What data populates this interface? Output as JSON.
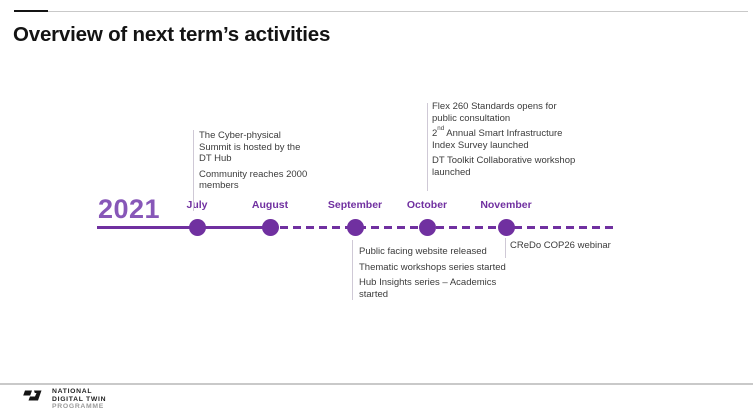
{
  "slide_title": "Overview of next term’s activities",
  "timeline": {
    "year": "2021",
    "months": [
      "July",
      "August",
      "September",
      "October",
      "November"
    ],
    "annotations": [
      {
        "id": "cyber-summit",
        "attach": "July",
        "side": "above",
        "paragraphs": [
          "The Cyber-physical Summit is hosted by the DT Hub",
          "Community reaches 2000 members"
        ]
      },
      {
        "id": "standards",
        "attach": "October",
        "side": "above",
        "paragraphs": [
          "Flex 260 Standards opens for public consultation",
          "2nd Annual Smart Infrastructure Index Survey launched",
          "DT Toolkit Collaborative workshop launched"
        ]
      },
      {
        "id": "website",
        "attach": "September",
        "side": "below",
        "paragraphs": [
          "Public facing website released",
          "Thematic workshops series started",
          "Hub Insights series – Academics started"
        ]
      },
      {
        "id": "credo",
        "attach": "November",
        "side": "below",
        "paragraphs": [
          "CReDo COP26 webinar"
        ]
      }
    ]
  },
  "footer": {
    "logo_lines": [
      "NATIONAL",
      "DIGITAL TWIN",
      "PROGRAMME"
    ]
  },
  "colors": {
    "accent_purple": "#7030A0",
    "year_purple": "#8757B8",
    "body_text": "#3B3B3B",
    "leader_gray": "#CFC9D6"
  }
}
